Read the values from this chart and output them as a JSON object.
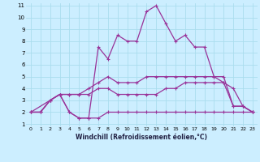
{
  "xlabel": "Windchill (Refroidissement éolien,°C)",
  "background_color": "#cceeff",
  "grid_color": "#aaddee",
  "line_color": "#993399",
  "xlim": [
    -0.5,
    23.5
  ],
  "ylim": [
    0.8,
    11.2
  ],
  "xticks": [
    0,
    1,
    2,
    3,
    4,
    5,
    6,
    7,
    8,
    9,
    10,
    11,
    12,
    13,
    14,
    15,
    16,
    17,
    18,
    19,
    20,
    21,
    22,
    23
  ],
  "yticks": [
    1,
    2,
    3,
    4,
    5,
    6,
    7,
    8,
    9,
    10,
    11
  ],
  "line1_x": [
    0,
    2,
    3,
    4,
    5,
    6,
    7,
    8,
    9,
    10,
    11,
    12,
    13,
    14,
    15,
    16,
    17,
    18,
    19,
    20,
    21,
    22,
    23
  ],
  "line1_y": [
    2,
    3,
    3.5,
    2,
    1.5,
    1.5,
    7.5,
    6.5,
    8.5,
    8,
    8,
    10.5,
    11,
    9.5,
    8,
    8.5,
    7.5,
    7.5,
    5,
    4.5,
    2.5,
    2.5,
    2
  ],
  "line2_x": [
    0,
    1,
    2,
    3,
    4,
    5,
    6,
    7,
    8,
    9,
    10,
    11,
    12,
    13,
    14,
    15,
    16,
    17,
    18,
    19,
    20,
    21,
    22,
    23
  ],
  "line2_y": [
    2,
    2,
    3,
    3.5,
    3.5,
    3.5,
    4,
    4.5,
    5,
    4.5,
    4.5,
    4.5,
    5,
    5,
    5,
    5,
    5,
    5,
    5,
    5,
    5,
    2.5,
    2.5,
    2
  ],
  "line3_x": [
    0,
    1,
    2,
    3,
    4,
    5,
    6,
    7,
    8,
    9,
    10,
    11,
    12,
    13,
    14,
    15,
    16,
    17,
    18,
    19,
    20,
    21,
    22,
    23
  ],
  "line3_y": [
    2,
    2,
    3,
    3.5,
    3.5,
    3.5,
    3.5,
    4,
    4,
    3.5,
    3.5,
    3.5,
    3.5,
    3.5,
    4,
    4,
    4.5,
    4.5,
    4.5,
    4.5,
    4.5,
    4,
    2.5,
    2
  ],
  "line4_x": [
    0,
    1,
    2,
    3,
    4,
    5,
    6,
    7,
    8,
    9,
    10,
    11,
    12,
    13,
    14,
    15,
    16,
    17,
    18,
    19,
    20,
    21,
    22,
    23
  ],
  "line4_y": [
    2,
    2,
    3,
    3.5,
    2,
    1.5,
    1.5,
    1.5,
    2,
    2,
    2,
    2,
    2,
    2,
    2,
    2,
    2,
    2,
    2,
    2,
    2,
    2,
    2,
    2
  ]
}
